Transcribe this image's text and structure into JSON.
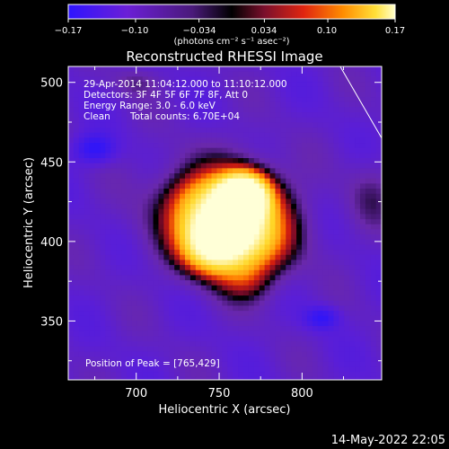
{
  "chart_data": {
    "type": "heatmap",
    "title": "Reconstructed RHESSI Image",
    "xlabel": "Heliocentric X (arcsec)",
    "ylabel": "Heliocentric Y (arcsec)",
    "xlim": [
      659,
      848
    ],
    "ylim": [
      313,
      510
    ],
    "x_ticks": [
      700,
      750,
      800
    ],
    "y_ticks": [
      350,
      400,
      450,
      500
    ],
    "colorbar": {
      "range": [
        -0.17,
        0.17
      ],
      "tick_values": [
        -0.17,
        -0.1,
        -0.034,
        0.034,
        0.1,
        0.17
      ],
      "tick_labels": [
        "−0.17",
        "−0.10",
        "−0.034",
        "0.034",
        "0.10",
        "0.17"
      ],
      "unit_label": "(photons cm⁻² s⁻¹ asec⁻²)"
    },
    "annotations": {
      "time_range": "29-Apr-2014 11:04:12.000 to 11:10:12.000",
      "detectors": "Detectors: 3F 4F 5F 6F 7F 8F, Att 0",
      "energy_range": "Energy Range: 3.0 - 6.0 keV",
      "method": "Clean",
      "total_counts": "Total counts: 6.70E+04",
      "peak_position": "Position of Peak = [765,429]"
    },
    "peak": [
      765,
      429
    ],
    "limb_line": [
      [
        823,
        510
      ],
      [
        848,
        465
      ]
    ],
    "negative_minima": [
      [
        675,
        458
      ],
      [
        812,
        352
      ]
    ]
  },
  "footer": {
    "date": "14-May-2022 22:05"
  },
  "colors": {
    "background": "#000000",
    "foreground": "#ffffff",
    "colormap": [
      "#2e14ff",
      "#7a1ad2",
      "#6b23a8",
      "#000000",
      "#7a0f2c",
      "#e02510",
      "#ff8c00",
      "#ffe038",
      "#ffffcc"
    ]
  }
}
